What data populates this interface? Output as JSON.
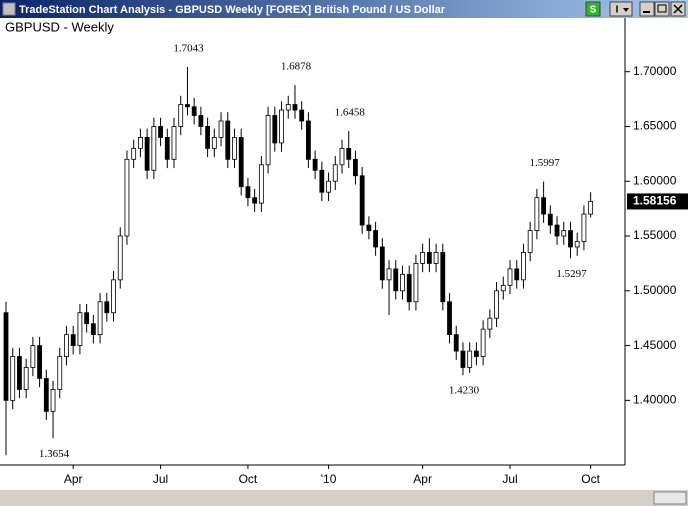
{
  "window": {
    "title": "TradeStation Chart Analysis - GBPUSD Weekly [FOREX] British Pound / US Dollar",
    "buttons": [
      "S",
      "I"
    ]
  },
  "chart_data": {
    "type": "candlestick",
    "title": "GBPUSD - Weekly",
    "categories": [
      null,
      null,
      null,
      null,
      null,
      null,
      null,
      null,
      null,
      null,
      "Apr",
      null,
      null,
      null,
      null,
      null,
      null,
      null,
      null,
      null,
      null,
      null,
      null,
      "Jul",
      null,
      null,
      null,
      null,
      null,
      null,
      null,
      null,
      null,
      null,
      null,
      null,
      "Oct",
      null,
      null,
      null,
      null,
      null,
      null,
      null,
      null,
      null,
      null,
      null,
      "'10",
      null,
      null,
      null,
      null,
      null,
      null,
      null,
      null,
      null,
      null,
      null,
      null,
      null,
      "Apr",
      null,
      null,
      null,
      null,
      null,
      null,
      null,
      null,
      null,
      null,
      null,
      null,
      "Jul",
      null,
      null,
      null,
      null,
      null,
      null,
      null,
      null,
      null,
      null,
      null,
      "Oct"
    ],
    "open": [
      1.48,
      1.4,
      1.44,
      1.41,
      1.43,
      1.45,
      1.42,
      1.39,
      1.41,
      1.44,
      1.46,
      1.45,
      1.48,
      1.47,
      1.46,
      1.49,
      1.48,
      1.51,
      1.55,
      1.62,
      1.63,
      1.64,
      1.61,
      1.65,
      1.64,
      1.62,
      1.65,
      1.67,
      1.668,
      1.66,
      1.65,
      1.63,
      1.64,
      1.655,
      1.62,
      1.64,
      1.595,
      1.585,
      1.58,
      1.615,
      1.66,
      1.635,
      1.665,
      1.67,
      1.665,
      1.655,
      1.62,
      1.61,
      1.59,
      1.6,
      1.615,
      1.63,
      1.62,
      1.605,
      1.56,
      1.555,
      1.54,
      1.51,
      1.52,
      1.5,
      1.515,
      1.49,
      1.525,
      1.535,
      1.525,
      1.535,
      1.49,
      1.46,
      1.445,
      1.43,
      1.445,
      1.44,
      1.465,
      1.475,
      1.5,
      1.505,
      1.52,
      1.51,
      1.535,
      1.555,
      1.585,
      1.57,
      1.56,
      1.55,
      1.555,
      1.54,
      1.545,
      1.57
    ],
    "high": [
      1.49,
      1.448,
      1.448,
      1.438,
      1.458,
      1.458,
      1.428,
      1.418,
      1.448,
      1.468,
      1.468,
      1.488,
      1.488,
      1.478,
      1.498,
      1.498,
      1.518,
      1.558,
      1.628,
      1.638,
      1.648,
      1.648,
      1.658,
      1.658,
      1.648,
      1.658,
      1.678,
      1.7043,
      1.676,
      1.668,
      1.658,
      1.648,
      1.663,
      1.663,
      1.648,
      1.648,
      1.603,
      1.593,
      1.623,
      1.668,
      1.668,
      1.673,
      1.678,
      1.6878,
      1.673,
      1.663,
      1.628,
      1.618,
      1.608,
      1.623,
      1.638,
      1.6458,
      1.628,
      1.613,
      1.568,
      1.563,
      1.548,
      1.528,
      1.528,
      1.523,
      1.523,
      1.533,
      1.543,
      1.548,
      1.543,
      1.543,
      1.498,
      1.468,
      1.453,
      1.453,
      1.453,
      1.473,
      1.483,
      1.508,
      1.513,
      1.528,
      1.528,
      1.543,
      1.563,
      1.593,
      1.5997,
      1.578,
      1.568,
      1.563,
      1.563,
      1.553,
      1.578,
      1.59
    ],
    "low": [
      1.35,
      1.392,
      1.402,
      1.402,
      1.422,
      1.412,
      1.382,
      1.3654,
      1.402,
      1.432,
      1.442,
      1.442,
      1.462,
      1.452,
      1.452,
      1.472,
      1.472,
      1.502,
      1.542,
      1.612,
      1.622,
      1.602,
      1.602,
      1.632,
      1.612,
      1.612,
      1.642,
      1.66,
      1.652,
      1.642,
      1.622,
      1.622,
      1.632,
      1.612,
      1.612,
      1.587,
      1.577,
      1.572,
      1.572,
      1.607,
      1.627,
      1.627,
      1.657,
      1.657,
      1.647,
      1.612,
      1.602,
      1.582,
      1.582,
      1.592,
      1.607,
      1.612,
      1.597,
      1.552,
      1.547,
      1.532,
      1.502,
      1.478,
      1.492,
      1.492,
      1.482,
      1.482,
      1.517,
      1.517,
      1.517,
      1.482,
      1.452,
      1.437,
      1.423,
      1.425,
      1.432,
      1.432,
      1.457,
      1.467,
      1.492,
      1.497,
      1.502,
      1.502,
      1.527,
      1.547,
      1.562,
      1.552,
      1.542,
      1.542,
      1.5297,
      1.532,
      1.537,
      1.567
    ],
    "close": [
      1.4,
      1.44,
      1.41,
      1.43,
      1.45,
      1.42,
      1.39,
      1.41,
      1.44,
      1.46,
      1.45,
      1.48,
      1.47,
      1.46,
      1.49,
      1.48,
      1.51,
      1.55,
      1.62,
      1.63,
      1.64,
      1.61,
      1.65,
      1.64,
      1.62,
      1.65,
      1.67,
      1.668,
      1.66,
      1.65,
      1.63,
      1.64,
      1.655,
      1.62,
      1.64,
      1.595,
      1.585,
      1.58,
      1.615,
      1.66,
      1.635,
      1.665,
      1.67,
      1.665,
      1.655,
      1.62,
      1.61,
      1.59,
      1.6,
      1.615,
      1.63,
      1.62,
      1.605,
      1.56,
      1.555,
      1.54,
      1.51,
      1.52,
      1.5,
      1.515,
      1.49,
      1.525,
      1.535,
      1.525,
      1.535,
      1.49,
      1.46,
      1.445,
      1.43,
      1.445,
      1.44,
      1.465,
      1.475,
      1.5,
      1.505,
      1.52,
      1.51,
      1.535,
      1.555,
      1.585,
      1.57,
      1.56,
      1.55,
      1.555,
      1.54,
      1.545,
      1.57,
      1.58156
    ],
    "up_color": "#ffffff",
    "down_color": "#000000",
    "ylim": [
      1.341,
      1.749
    ],
    "yticks": [
      {
        "value": 1.4,
        "label": "1.40000"
      },
      {
        "value": 1.45,
        "label": "1.45000"
      },
      {
        "value": 1.5,
        "label": "1.50000"
      },
      {
        "value": 1.55,
        "label": "1.55000"
      },
      {
        "value": 1.6,
        "label": "1.60000"
      },
      {
        "value": 1.65,
        "label": "1.65000"
      },
      {
        "value": 1.7,
        "label": "1.70000"
      }
    ],
    "annotations": [
      1.7043,
      1.6878,
      1.6458,
      1.5997,
      1.5297,
      {
        "value": 1.423,
        "label": "1.4230"
      },
      1.3654
    ]
  }
}
